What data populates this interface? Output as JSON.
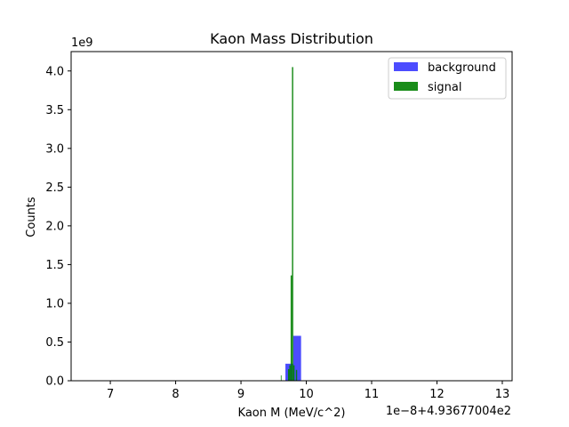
{
  "chart_data": {
    "type": "bar",
    "title": "Kaon Mass Distribution",
    "xlabel": "Kaon M (MeV/c^2)",
    "ylabel": "Counts",
    "x_offset_label": "1e−8+4.93677004e2",
    "y_scale_label": "1e9",
    "xlim": [
      6.4,
      13.15
    ],
    "ylim": [
      0,
      4.25
    ],
    "x_ticks": [
      "7",
      "8",
      "9",
      "10",
      "11",
      "12",
      "13"
    ],
    "y_ticks": [
      "0.0",
      "0.5",
      "1.0",
      "1.5",
      "2.0",
      "2.5",
      "3.0",
      "3.5",
      "4.0"
    ],
    "legend_position": "top-right",
    "series": [
      {
        "name": "background",
        "color": "#0000ff",
        "bins": [
          {
            "x0": 9.56,
            "x1": 9.6,
            "y": 0.005
          },
          {
            "x0": 9.68,
            "x1": 9.8,
            "y": 0.22
          },
          {
            "x0": 9.8,
            "x1": 9.92,
            "y": 0.58
          }
        ]
      },
      {
        "name": "signal",
        "color": "#008000",
        "bins": [
          {
            "x0": 9.61,
            "x1": 9.62,
            "y": 0.07
          },
          {
            "x0": 9.72,
            "x1": 9.74,
            "y": 0.15
          },
          {
            "x0": 9.74,
            "x1": 9.76,
            "y": 0.2
          },
          {
            "x0": 9.76,
            "x1": 9.78,
            "y": 1.36
          },
          {
            "x0": 9.78,
            "x1": 9.8,
            "y": 4.05
          },
          {
            "x0": 9.8,
            "x1": 9.82,
            "y": 0.2
          },
          {
            "x0": 9.84,
            "x1": 9.86,
            "y": 0.14
          }
        ]
      }
    ]
  }
}
